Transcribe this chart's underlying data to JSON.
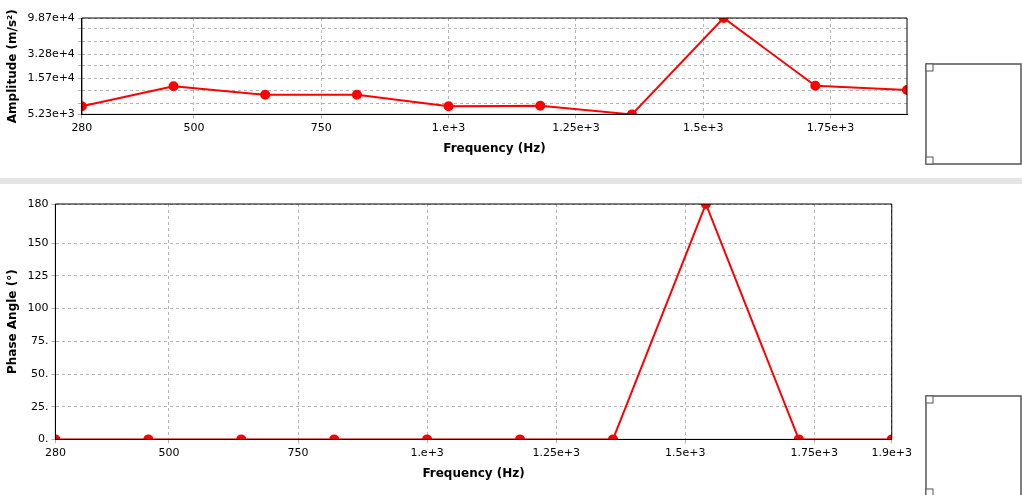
{
  "chart_data": [
    {
      "type": "line",
      "xlabel": "Frequency (Hz)",
      "ylabel": "Amplitude (m/s²)",
      "x": [
        280,
        460,
        640,
        820,
        1000,
        1180,
        1360,
        1540,
        1720,
        1900
      ],
      "values": [
        6700,
        12300,
        9500,
        9500,
        6700,
        6800,
        5230,
        98700,
        12500,
        11000
      ],
      "color": "#ff0000",
      "marker": "circle",
      "line_style": "solid",
      "log": "y",
      "grid": true,
      "xlim": [
        280,
        1900
      ],
      "xticks": [
        280,
        500,
        750,
        {
          "value": 1000,
          "label": "1.e+3"
        },
        {
          "value": 1250,
          "label": "1.25e+3"
        },
        {
          "value": 1500,
          "label": "1.5e+3"
        },
        {
          "value": 1750,
          "label": "1.75e+3"
        }
      ],
      "ylim": [
        5230,
        98700
      ],
      "yticks": [
        {
          "value": 5230,
          "label": "5.23e+3"
        },
        {
          "value": 7400,
          "label": null
        },
        {
          "value": 11000,
          "label": null
        },
        {
          "value": 15700,
          "label": "1.57e+4"
        },
        {
          "value": 23000,
          "label": null
        },
        {
          "value": 32800,
          "label": "3.28e+4"
        },
        {
          "value": 48000,
          "label": null
        },
        {
          "value": 71000,
          "label": null
        },
        {
          "value": 98700,
          "label": "9.87e+4"
        }
      ]
    },
    {
      "type": "line",
      "xlabel": "Frequency (Hz)",
      "ylabel": "Phase Angle (°)",
      "x": [
        280,
        460,
        640,
        820,
        1000,
        1180,
        1360,
        1540,
        1720,
        1900
      ],
      "values": [
        0,
        0,
        0,
        0,
        0,
        0,
        0,
        180,
        0,
        0
      ],
      "color": "#ff0000",
      "marker": "circle",
      "line_style": "solid",
      "grid": true,
      "xlim": [
        280,
        1900
      ],
      "xticks": [
        280,
        500,
        750,
        {
          "value": 1000,
          "label": "1.e+3"
        },
        {
          "value": 1250,
          "label": "1.25e+3"
        },
        {
          "value": 1500,
          "label": "1.5e+3"
        },
        {
          "value": 1750,
          "label": "1.75e+3"
        },
        {
          "value": 1900,
          "label": "1.9e+3"
        }
      ],
      "ylim": [
        0,
        180
      ],
      "yticks": [
        {
          "value": 0,
          "label": "0."
        },
        {
          "value": 25,
          "label": "25."
        },
        {
          "value": 50,
          "label": "50."
        },
        {
          "value": 75,
          "label": "75."
        },
        100,
        125,
        150,
        180
      ]
    }
  ]
}
